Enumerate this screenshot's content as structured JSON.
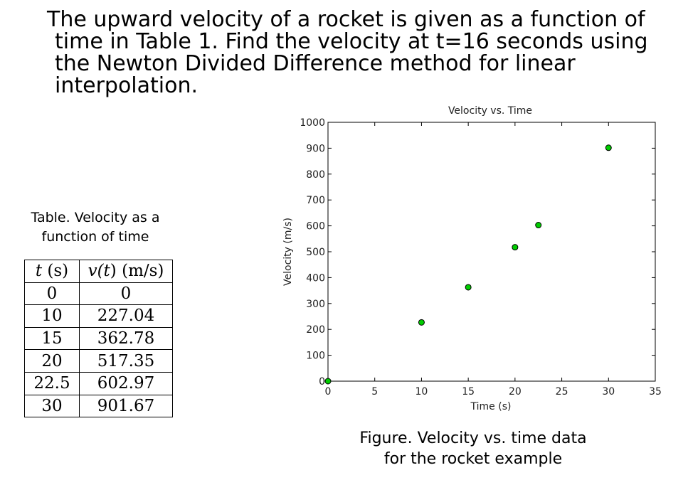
{
  "problem": {
    "lines": [
      "The upward velocity of a rocket is given as a function of",
      "time in Table 1. Find the velocity at t=16 seconds using",
      "the Newton Divided Difference method for linear",
      "interpolation."
    ]
  },
  "table": {
    "caption_line1": "Table. Velocity as a",
    "caption_line2": "function of time",
    "header_t_var": "t",
    "header_t_unit": " (s)",
    "header_v_var_pre": "v(",
    "header_v_var": "t",
    "header_v_var_post": ")",
    "header_v_unit": " (m/s)",
    "rows": [
      {
        "t": "0",
        "v": "0"
      },
      {
        "t": "10",
        "v": "227.04"
      },
      {
        "t": "15",
        "v": "362.78"
      },
      {
        "t": "20",
        "v": "517.35"
      },
      {
        "t": "22.5",
        "v": "602.97"
      },
      {
        "t": "30",
        "v": "901.67"
      }
    ]
  },
  "figure_caption": {
    "line1": "Figure. Velocity vs. time data",
    "line2": "for the rocket example"
  },
  "chart_data": {
    "type": "scatter",
    "title": "Velocity vs. Time",
    "xlabel": "Time (s)",
    "ylabel": "Velocity (m/s)",
    "xlim": [
      0,
      35
    ],
    "ylim": [
      0,
      1000
    ],
    "xticks": [
      0,
      5,
      10,
      15,
      20,
      25,
      30,
      35
    ],
    "yticks": [
      0,
      100,
      200,
      300,
      400,
      500,
      600,
      700,
      800,
      900,
      1000
    ],
    "grid": false,
    "series": [
      {
        "marker_color": "#00cc00",
        "x": [
          0,
          10,
          15,
          20,
          22.5,
          30
        ],
        "y": [
          0,
          227.04,
          362.78,
          517.35,
          602.97,
          901.67
        ]
      }
    ]
  }
}
